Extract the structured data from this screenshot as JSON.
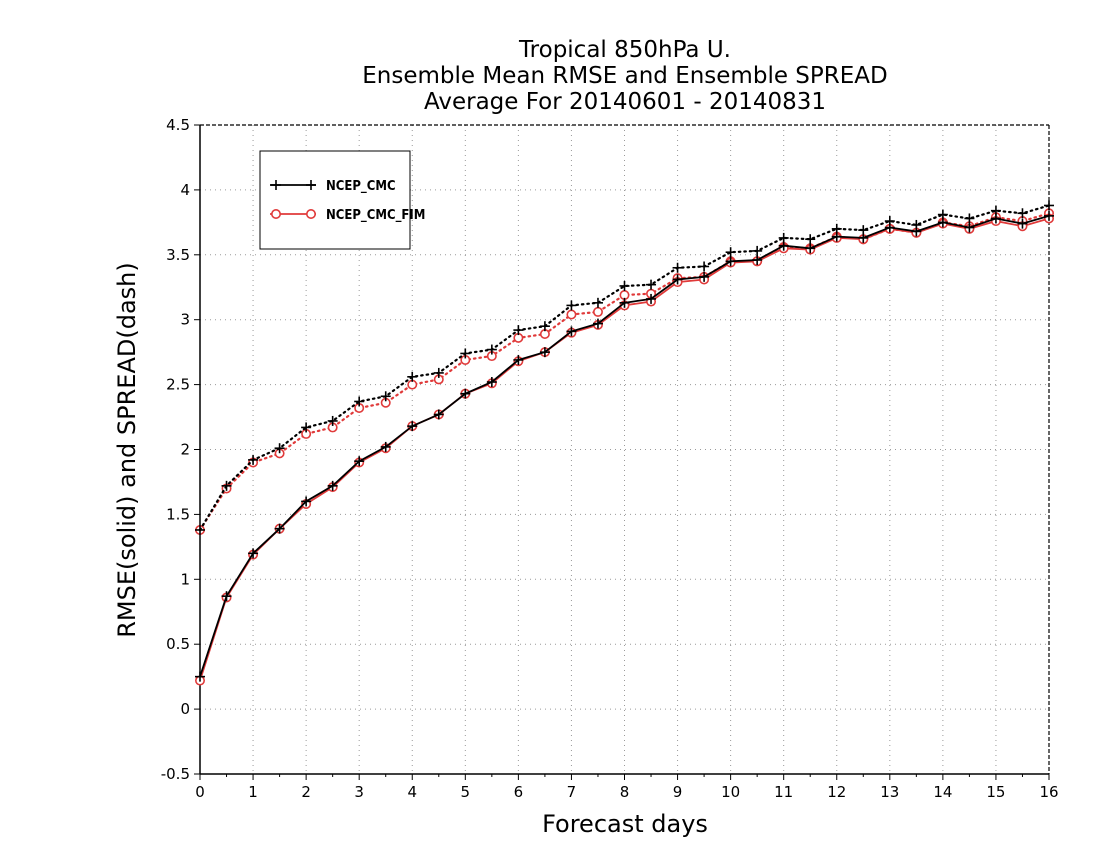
{
  "chart_data": {
    "type": "line",
    "title_lines": [
      "Tropical 850hPa U.",
      "Ensemble Mean RMSE and Ensemble SPREAD",
      "Average For 20140601 - 20140831"
    ],
    "xlabel": "Forecast days",
    "ylabel": "RMSE(solid) and SPREAD(dash)",
    "xlim": [
      0,
      16
    ],
    "ylim": [
      -0.5,
      4.5
    ],
    "xticks": [
      0,
      1,
      2,
      3,
      4,
      5,
      6,
      7,
      8,
      9,
      10,
      11,
      12,
      13,
      14,
      15,
      16
    ],
    "yticks": [
      -0.5,
      0,
      0.5,
      1,
      1.5,
      2,
      2.5,
      3,
      3.5,
      4,
      4.5
    ],
    "ytick_labels": [
      "-0.5",
      "0",
      "0.5",
      "1",
      "1.5",
      "2",
      "2.5",
      "3",
      "3.5",
      "4",
      "4.5"
    ],
    "grid": true,
    "legend_position": "top-left",
    "x": [
      0,
      0.5,
      1,
      1.5,
      2,
      2.5,
      3,
      3.5,
      4,
      4.5,
      5,
      5.5,
      6,
      6.5,
      7,
      7.5,
      8,
      8.5,
      9,
      9.5,
      10,
      10.5,
      11,
      11.5,
      12,
      12.5,
      13,
      13.5,
      14,
      14.5,
      15,
      15.5,
      16
    ],
    "series": [
      {
        "name": "NCEP_CMC",
        "color": "#000000",
        "marker": "plus",
        "rmse": [
          0.25,
          0.87,
          1.2,
          1.39,
          1.6,
          1.72,
          1.91,
          2.02,
          2.18,
          2.27,
          2.43,
          2.52,
          2.69,
          2.75,
          2.91,
          2.97,
          3.13,
          3.16,
          3.31,
          3.33,
          3.45,
          3.46,
          3.57,
          3.55,
          3.64,
          3.63,
          3.71,
          3.68,
          3.75,
          3.71,
          3.78,
          3.74,
          3.8
        ],
        "spread": [
          1.38,
          1.72,
          1.92,
          2.01,
          2.17,
          2.22,
          2.37,
          2.41,
          2.56,
          2.59,
          2.74,
          2.77,
          2.92,
          2.95,
          3.11,
          3.13,
          3.26,
          3.27,
          3.4,
          3.41,
          3.52,
          3.53,
          3.63,
          3.62,
          3.7,
          3.69,
          3.76,
          3.73,
          3.81,
          3.78,
          3.84,
          3.82,
          3.88
        ]
      },
      {
        "name": "NCEP_CMC_FIM",
        "color": "#e03a3a",
        "marker": "circle",
        "rmse": [
          0.22,
          0.86,
          1.19,
          1.39,
          1.58,
          1.71,
          1.9,
          2.01,
          2.18,
          2.27,
          2.43,
          2.51,
          2.68,
          2.75,
          2.9,
          2.96,
          3.11,
          3.14,
          3.29,
          3.31,
          3.44,
          3.45,
          3.55,
          3.54,
          3.63,
          3.62,
          3.7,
          3.67,
          3.74,
          3.7,
          3.76,
          3.72,
          3.78
        ],
        "spread": [
          1.38,
          1.7,
          1.9,
          1.97,
          2.12,
          2.17,
          2.32,
          2.36,
          2.5,
          2.54,
          2.69,
          2.72,
          2.86,
          2.89,
          3.04,
          3.06,
          3.19,
          3.2,
          3.32,
          3.33,
          3.45,
          3.45,
          3.56,
          3.55,
          3.64,
          3.62,
          3.7,
          3.67,
          3.75,
          3.72,
          3.79,
          3.76,
          3.82
        ]
      }
    ]
  }
}
